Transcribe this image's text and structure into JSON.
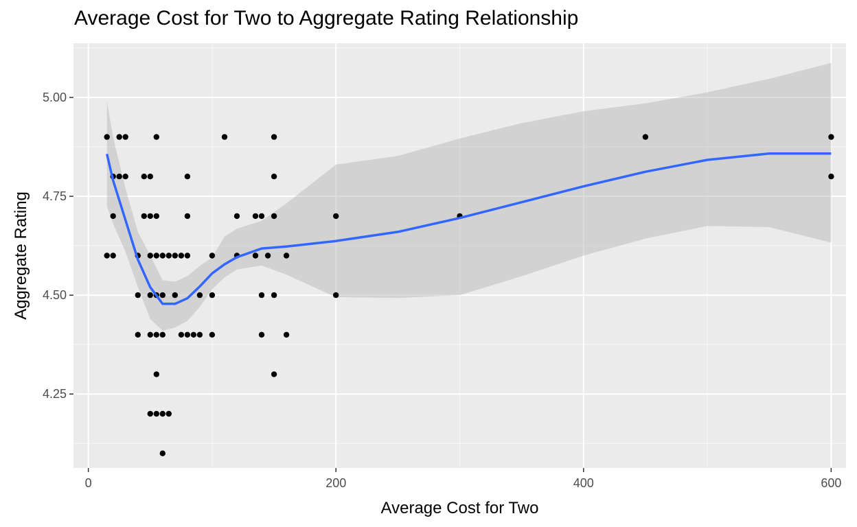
{
  "chart_data": {
    "type": "scatter",
    "title": "Average Cost for Two to Aggregate Rating Relationship",
    "xlabel": "Average Cost for Two",
    "ylabel": "Aggregate Rating",
    "xlim": [
      -12,
      612
    ],
    "ylim": [
      4.063,
      5.137
    ],
    "x_ticks": [
      0,
      200,
      400,
      600
    ],
    "x_tick_labels": [
      "0",
      "200",
      "400",
      "600"
    ],
    "y_ticks": [
      4.25,
      4.5,
      4.75,
      5.0
    ],
    "y_tick_labels": [
      "4.25",
      "4.50",
      "4.75",
      "5.00"
    ],
    "grid": true,
    "legend": "none",
    "colors": {
      "panel": "#ebebeb",
      "grid_major": "#ffffff",
      "points": "#000000",
      "smooth_line": "#3366ff",
      "ribbon": "#b3b3b3"
    },
    "points": [
      {
        "x": 15,
        "y": 4.9
      },
      {
        "x": 15,
        "y": 4.6
      },
      {
        "x": 20,
        "y": 4.8
      },
      {
        "x": 20,
        "y": 4.7
      },
      {
        "x": 20,
        "y": 4.6
      },
      {
        "x": 25,
        "y": 4.9
      },
      {
        "x": 25,
        "y": 4.8
      },
      {
        "x": 30,
        "y": 4.9
      },
      {
        "x": 30,
        "y": 4.8
      },
      {
        "x": 40,
        "y": 4.6
      },
      {
        "x": 40,
        "y": 4.5
      },
      {
        "x": 40,
        "y": 4.4
      },
      {
        "x": 45,
        "y": 4.8
      },
      {
        "x": 45,
        "y": 4.7
      },
      {
        "x": 50,
        "y": 4.8
      },
      {
        "x": 50,
        "y": 4.7
      },
      {
        "x": 50,
        "y": 4.6
      },
      {
        "x": 50,
        "y": 4.5
      },
      {
        "x": 50,
        "y": 4.4
      },
      {
        "x": 50,
        "y": 4.2
      },
      {
        "x": 55,
        "y": 4.9
      },
      {
        "x": 55,
        "y": 4.7
      },
      {
        "x": 55,
        "y": 4.6
      },
      {
        "x": 55,
        "y": 4.5
      },
      {
        "x": 55,
        "y": 4.4
      },
      {
        "x": 55,
        "y": 4.3
      },
      {
        "x": 55,
        "y": 4.2
      },
      {
        "x": 60,
        "y": 4.6
      },
      {
        "x": 60,
        "y": 4.5
      },
      {
        "x": 60,
        "y": 4.4
      },
      {
        "x": 60,
        "y": 4.2
      },
      {
        "x": 60,
        "y": 4.1
      },
      {
        "x": 65,
        "y": 4.6
      },
      {
        "x": 65,
        "y": 4.2
      },
      {
        "x": 70,
        "y": 4.6
      },
      {
        "x": 70,
        "y": 4.5
      },
      {
        "x": 75,
        "y": 4.6
      },
      {
        "x": 75,
        "y": 4.4
      },
      {
        "x": 80,
        "y": 4.8
      },
      {
        "x": 80,
        "y": 4.7
      },
      {
        "x": 80,
        "y": 4.6
      },
      {
        "x": 80,
        "y": 4.4
      },
      {
        "x": 85,
        "y": 4.4
      },
      {
        "x": 90,
        "y": 4.5
      },
      {
        "x": 90,
        "y": 4.4
      },
      {
        "x": 100,
        "y": 4.6
      },
      {
        "x": 100,
        "y": 4.5
      },
      {
        "x": 100,
        "y": 4.4
      },
      {
        "x": 110,
        "y": 4.9
      },
      {
        "x": 120,
        "y": 4.7
      },
      {
        "x": 120,
        "y": 4.6
      },
      {
        "x": 135,
        "y": 4.7
      },
      {
        "x": 135,
        "y": 4.6
      },
      {
        "x": 140,
        "y": 4.7
      },
      {
        "x": 140,
        "y": 4.5
      },
      {
        "x": 140,
        "y": 4.4
      },
      {
        "x": 145,
        "y": 4.6
      },
      {
        "x": 150,
        "y": 4.9
      },
      {
        "x": 150,
        "y": 4.8
      },
      {
        "x": 150,
        "y": 4.7
      },
      {
        "x": 150,
        "y": 4.5
      },
      {
        "x": 150,
        "y": 4.3
      },
      {
        "x": 160,
        "y": 4.6
      },
      {
        "x": 160,
        "y": 4.4
      },
      {
        "x": 200,
        "y": 4.7
      },
      {
        "x": 200,
        "y": 4.5
      },
      {
        "x": 300,
        "y": 4.7
      },
      {
        "x": 450,
        "y": 4.9
      },
      {
        "x": 600,
        "y": 4.9
      },
      {
        "x": 600,
        "y": 4.8
      }
    ],
    "smooth": {
      "x": [
        15,
        20,
        30,
        40,
        50,
        60,
        70,
        80,
        90,
        100,
        110,
        120,
        140,
        160,
        200,
        250,
        300,
        350,
        400,
        450,
        500,
        550,
        600
      ],
      "y": [
        4.857,
        4.79,
        4.69,
        4.59,
        4.52,
        4.478,
        4.478,
        4.492,
        4.522,
        4.555,
        4.578,
        4.596,
        4.618,
        4.623,
        4.637,
        4.66,
        4.695,
        4.735,
        4.775,
        4.812,
        4.842,
        4.858,
        4.858
      ],
      "ymin": [
        4.725,
        4.68,
        4.61,
        4.52,
        4.44,
        4.41,
        4.418,
        4.435,
        4.47,
        4.515,
        4.545,
        4.565,
        4.575,
        4.552,
        4.495,
        4.493,
        4.5,
        4.548,
        4.6,
        4.643,
        4.675,
        4.672,
        4.633
      ],
      "ymax": [
        4.99,
        4.9,
        4.77,
        4.66,
        4.6,
        4.538,
        4.534,
        4.548,
        4.574,
        4.595,
        4.648,
        4.668,
        4.688,
        4.732,
        4.83,
        4.852,
        4.896,
        4.935,
        4.965,
        4.985,
        5.013,
        5.047,
        5.087
      ]
    }
  }
}
